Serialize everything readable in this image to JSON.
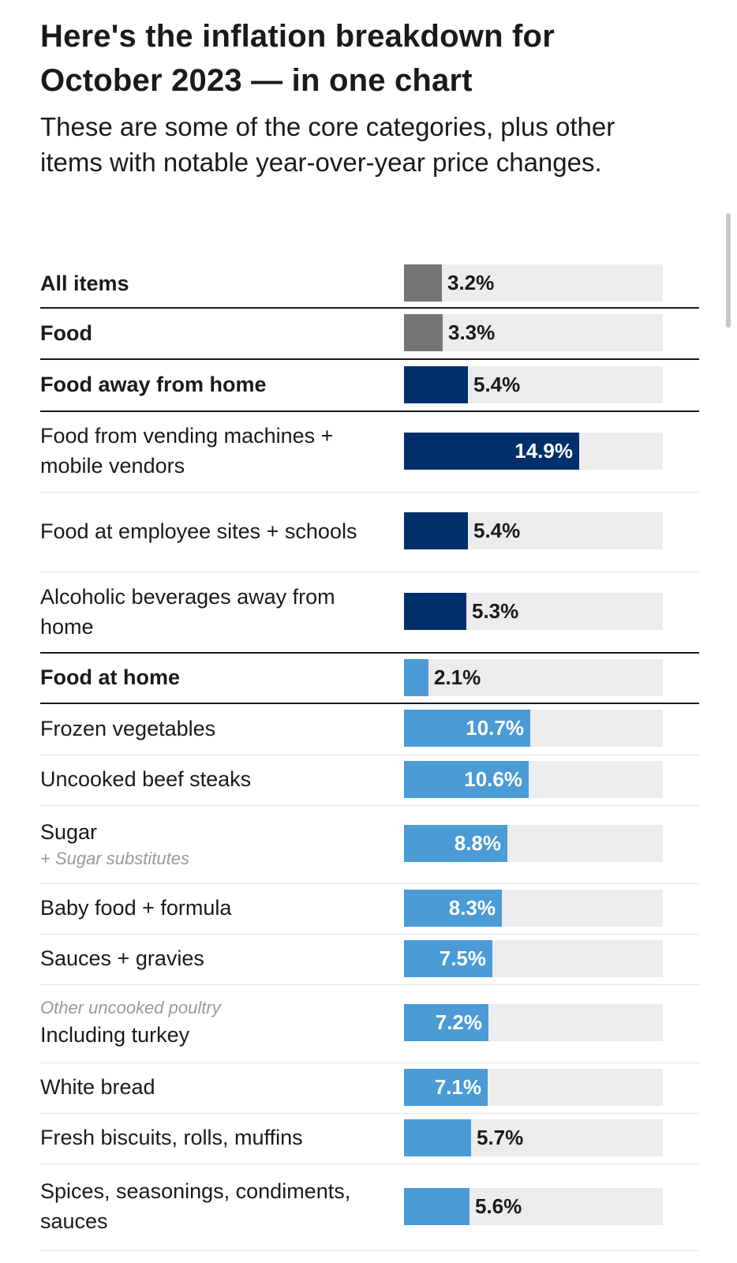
{
  "header": {
    "title": "Here's the inflation breakdown for October 2023 — in one chart",
    "subtitle": "These are some of the core categories, plus other items with notable year-over-year price changes."
  },
  "colors": {
    "gray": "#757575",
    "navy": "#00306b",
    "light_blue": "#4a9bd6",
    "track": "#ececec"
  },
  "chart_data": {
    "type": "bar",
    "orientation": "horizontal",
    "unit": "%",
    "xlim": [
      0,
      22
    ],
    "rows": [
      {
        "label": "All items",
        "value": 3.2,
        "display": "3.2%",
        "color": "gray",
        "bold": true
      },
      {
        "label": "Food",
        "value": 3.3,
        "display": "3.3%",
        "color": "gray",
        "bold": true
      },
      {
        "label": "Food away from home",
        "value": 5.4,
        "display": "5.4%",
        "color": "navy",
        "bold": true
      },
      {
        "label": "Food from vending machines + mobile vendors",
        "value": 14.9,
        "display": "14.9%",
        "color": "navy",
        "bold": false
      },
      {
        "label": "Food at employee sites + schools",
        "value": 5.4,
        "display": "5.4%",
        "color": "navy",
        "bold": false
      },
      {
        "label": "Alcoholic beverages away from home",
        "value": 5.3,
        "display": "5.3%",
        "color": "navy",
        "bold": false
      },
      {
        "label": "Food at home",
        "value": 2.1,
        "display": "2.1%",
        "color": "light_blue",
        "bold": true
      },
      {
        "label": "Frozen vegetables",
        "value": 10.7,
        "display": "10.7%",
        "color": "light_blue",
        "bold": false
      },
      {
        "label": "Uncooked beef steaks",
        "value": 10.6,
        "display": "10.6%",
        "color": "light_blue",
        "bold": false
      },
      {
        "label": "Sugar",
        "note": "+ Sugar substitutes",
        "value": 8.8,
        "display": "8.8%",
        "color": "light_blue",
        "bold": false
      },
      {
        "label": "Baby food + formula",
        "value": 8.3,
        "display": "8.3%",
        "color": "light_blue",
        "bold": false
      },
      {
        "label": "Sauces + gravies",
        "value": 7.5,
        "display": "7.5%",
        "color": "light_blue",
        "bold": false
      },
      {
        "label": "Including turkey",
        "note_before": "Other uncooked poultry",
        "value": 7.2,
        "display": "7.2%",
        "color": "light_blue",
        "bold": false
      },
      {
        "label": "White bread",
        "value": 7.1,
        "display": "7.1%",
        "color": "light_blue",
        "bold": false
      },
      {
        "label": "Fresh biscuits, rolls, muffins",
        "value": 5.7,
        "display": "5.7%",
        "color": "light_blue",
        "bold": false
      },
      {
        "label": "Spices, seasonings, condiments, sauces",
        "value": 5.6,
        "display": "5.6%",
        "color": "light_blue",
        "bold": false
      }
    ]
  }
}
